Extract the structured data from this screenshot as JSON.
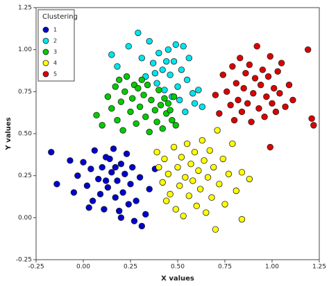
{
  "chart_data": {
    "type": "scatter",
    "xlabel": "X values",
    "ylabel": "Y values",
    "xlim": [
      -0.25,
      1.25
    ],
    "ylim": [
      -0.25,
      1.25
    ],
    "xticks": [
      {
        "value": -0.25,
        "label": "-0.25"
      },
      {
        "value": 0,
        "label": "0.00"
      },
      {
        "value": 0.25,
        "label": "0.25"
      },
      {
        "value": 0.5,
        "label": "0.50"
      },
      {
        "value": 0.75,
        "label": "0.75"
      },
      {
        "value": 1,
        "label": "1.00"
      },
      {
        "value": 1.25,
        "label": "1.25"
      }
    ],
    "yticks": [
      {
        "value": -0.25,
        "label": "-0.25"
      },
      {
        "value": 0,
        "label": "0.00"
      },
      {
        "value": 0.25,
        "label": "0.25"
      },
      {
        "value": 0.5,
        "label": "0.50"
      },
      {
        "value": 0.75,
        "label": "0.75"
      },
      {
        "value": 1,
        "label": "1.00"
      },
      {
        "value": 1.25,
        "label": "1.25"
      }
    ],
    "legend_title": "Clustering",
    "legend_position": "upper left",
    "series": [
      {
        "name": "1",
        "color": "#0000cd",
        "x": [
          -0.17,
          -0.14,
          -0.07,
          -0.05,
          -0.03,
          0,
          0.02,
          0.04,
          0.05,
          0.06,
          0.08,
          0.1,
          0.11,
          0.12,
          0.13,
          0.15,
          0.16,
          0.17,
          0.18,
          0.19,
          0.2,
          0.21,
          0.22,
          0.23,
          0.24,
          0.25,
          0.26,
          0.28,
          0.3,
          0.31,
          0.33,
          0.35,
          0.38,
          0.03,
          0.09,
          0.14,
          0.2,
          0.27,
          0.12,
          0.17
        ],
        "values": [
          0.39,
          0.2,
          0.34,
          0.15,
          0.25,
          0.33,
          0.19,
          0.29,
          0.1,
          0.4,
          0.23,
          0.3,
          0.05,
          0.36,
          0.18,
          0.27,
          0.41,
          0.12,
          0.22,
          0.04,
          0.32,
          0.15,
          0.26,
          0.38,
          0.08,
          0.2,
          0.3,
          0.1,
          0.24,
          -0.05,
          0.02,
          0.17,
          0.29,
          0.06,
          0.14,
          0.35,
          0,
          -0.02,
          0.22,
          0.3
        ]
      },
      {
        "name": "2",
        "color": "#00e5ee",
        "x": [
          0.15,
          0.18,
          0.24,
          0.29,
          0.31,
          0.33,
          0.35,
          0.37,
          0.39,
          0.4,
          0.42,
          0.43,
          0.45,
          0.46,
          0.48,
          0.5,
          0.51,
          0.52,
          0.53,
          0.55,
          0.56,
          0.58,
          0.59,
          0.61,
          0.63,
          0.54,
          0.47,
          0.38,
          0.49,
          0.44
        ],
        "values": [
          0.97,
          0.9,
          1.02,
          1.1,
          0.95,
          0.84,
          1.05,
          0.92,
          0.8,
          0.98,
          0.88,
          0.76,
          1,
          0.85,
          0.93,
          0.78,
          0.7,
          0.88,
          1.02,
          0.82,
          0.95,
          0.74,
          0.68,
          0.76,
          0.66,
          0.63,
          0.72,
          0.86,
          1.03,
          0.93
        ]
      },
      {
        "name": "3",
        "color": "#00cc00",
        "x": [
          0.07,
          0.1,
          0.13,
          0.15,
          0.17,
          0.18,
          0.19,
          0.2,
          0.21,
          0.22,
          0.23,
          0.25,
          0.26,
          0.27,
          0.28,
          0.29,
          0.3,
          0.31,
          0.32,
          0.33,
          0.34,
          0.35,
          0.36,
          0.38,
          0.39,
          0.4,
          0.41,
          0.42,
          0.43,
          0.44,
          0.45,
          0.47,
          0.48,
          0.49,
          0.46
        ],
        "values": [
          0.61,
          0.55,
          0.72,
          0.65,
          0.78,
          0.58,
          0.82,
          0.69,
          0.52,
          0.75,
          0.84,
          0.63,
          0.71,
          0.79,
          0.56,
          0.77,
          0.66,
          0.82,
          0.73,
          0.6,
          0.79,
          0.51,
          0.7,
          0.64,
          0.57,
          0.76,
          0.67,
          0.53,
          0.71,
          0.62,
          0.68,
          0.58,
          0.72,
          0.55,
          0.64
        ]
      },
      {
        "name": "4",
        "color": "#ffff00",
        "x": [
          0.39,
          0.4,
          0.42,
          0.43,
          0.44,
          0.45,
          0.46,
          0.48,
          0.49,
          0.5,
          0.51,
          0.52,
          0.53,
          0.54,
          0.55,
          0.56,
          0.57,
          0.58,
          0.59,
          0.6,
          0.61,
          0.62,
          0.63,
          0.64,
          0.65,
          0.66,
          0.67,
          0.68,
          0.69,
          0.7,
          0.71,
          0.72,
          0.74,
          0.75,
          0.77,
          0.79,
          0.81,
          0.84,
          0.88,
          0.84
        ],
        "values": [
          0.39,
          0.3,
          0.21,
          0.35,
          0.1,
          0.26,
          0.14,
          0.42,
          0.05,
          0.3,
          0.19,
          0.36,
          0.01,
          0.24,
          0.44,
          0.13,
          0.32,
          0.22,
          0.39,
          0.07,
          0.28,
          0.17,
          0.46,
          0.34,
          0.03,
          0.24,
          0.4,
          0.12,
          0.3,
          -0.07,
          0.52,
          0.2,
          0.35,
          0.08,
          0.26,
          0.44,
          0.16,
          0.27,
          0.23,
          -0.01
        ]
      },
      {
        "name": "5",
        "color": "#dd0000",
        "x": [
          0.7,
          0.72,
          0.74,
          0.76,
          0.78,
          0.79,
          0.8,
          0.81,
          0.82,
          0.83,
          0.84,
          0.85,
          0.86,
          0.87,
          0.88,
          0.89,
          0.9,
          0.91,
          0.92,
          0.93,
          0.94,
          0.95,
          0.96,
          0.97,
          0.98,
          0.99,
          1,
          1.01,
          1.02,
          1.03,
          1.04,
          1.05,
          1.07,
          1.09,
          1.11,
          1.19,
          1.21,
          1.22,
          0.99
        ],
        "values": [
          0.73,
          0.62,
          0.85,
          0.75,
          0.67,
          0.9,
          0.58,
          0.8,
          0.7,
          0.95,
          0.63,
          0.77,
          0.86,
          0.68,
          0.91,
          0.57,
          0.74,
          0.83,
          1.02,
          0.65,
          0.79,
          0.88,
          0.6,
          0.72,
          0.84,
          0.96,
          0.68,
          0.77,
          0.63,
          0.87,
          0.74,
          0.92,
          0.66,
          0.79,
          0.7,
          1,
          0.59,
          0.55,
          0.42
        ]
      }
    ]
  }
}
